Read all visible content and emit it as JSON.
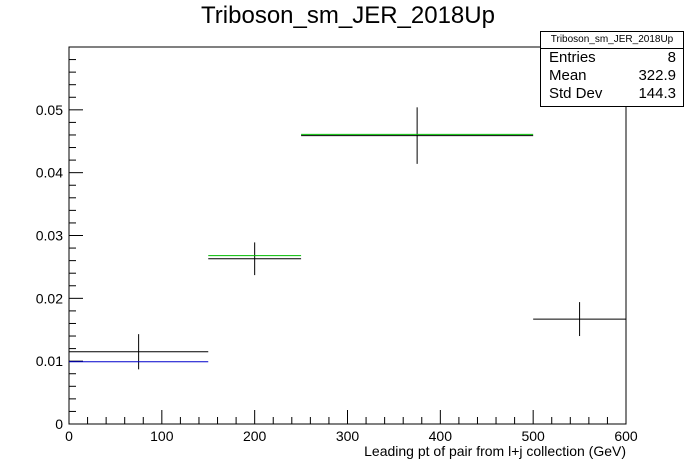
{
  "chart_data": {
    "type": "histogram",
    "title": "Triboson_sm_JER_2018Up",
    "xlabel": "Leading pt of pair from l+j collection (GeV)",
    "ylabel": "",
    "xlim": [
      0,
      600
    ],
    "ylim": [
      0,
      0.06
    ],
    "xticks": [
      0,
      100,
      200,
      300,
      400,
      500,
      600
    ],
    "yticks": [
      0,
      0.01,
      0.02,
      0.03,
      0.04,
      0.05
    ],
    "ytick_labels": [
      "0",
      "0.01",
      "0.02",
      "0.03",
      "0.04",
      "0.05"
    ],
    "grid": false,
    "series": [
      {
        "color": "#000000",
        "style": "points-with-errors",
        "bins": [
          {
            "xlow": 0,
            "xhigh": 150,
            "y": 0.0115,
            "yerr": 0.0028
          },
          {
            "xlow": 150,
            "xhigh": 250,
            "y": 0.0263,
            "yerr": 0.0026
          },
          {
            "xlow": 250,
            "xhigh": 500,
            "y": 0.0459,
            "yerr": 0.0045
          },
          {
            "xlow": 500,
            "xhigh": 600,
            "y": 0.0167,
            "yerr": 0.0027
          }
        ]
      },
      {
        "color": "#00bb00",
        "style": "step",
        "bins": [
          {
            "xlow": 150,
            "xhigh": 250,
            "y": 0.0268
          },
          {
            "xlow": 250,
            "xhigh": 500,
            "y": 0.0461
          }
        ]
      },
      {
        "color": "#0000cc",
        "style": "step",
        "bins": [
          {
            "xlow": 0,
            "xhigh": 150,
            "y": 0.0099
          }
        ]
      }
    ],
    "stats": {
      "name": "Triboson_sm_JER_2018Up",
      "entries_label": "Entries",
      "entries": "8",
      "mean_label": "Mean",
      "mean": "322.9",
      "stddev_label": "Std Dev",
      "stddev": "144.3"
    }
  }
}
